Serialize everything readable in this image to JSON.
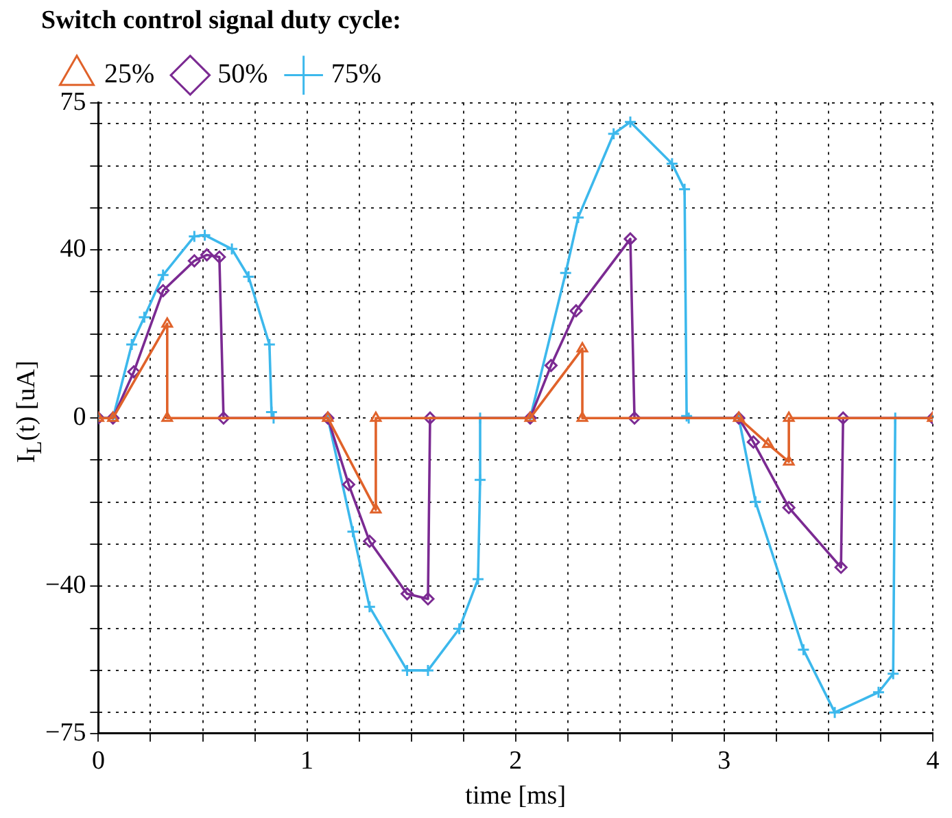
{
  "chart_data": {
    "type": "line",
    "xlabel": "time [ms]",
    "ylabel": "I$_{L}$(t) [uA]",
    "legend_title": "Switch control signal duty cycle:",
    "legend": "top left",
    "grid": true,
    "line_style": "solid",
    "xlim": [
      0,
      4
    ],
    "xticks": [
      0,
      {
        "value": 0.25,
        "label": null
      },
      {
        "value": 0.5,
        "label": null
      },
      {
        "value": 0.75,
        "label": null
      },
      1,
      {
        "value": 1.25,
        "label": null
      },
      {
        "value": 1.5,
        "label": null
      },
      {
        "value": 1.75,
        "label": null
      },
      2,
      {
        "value": 2.25,
        "label": null
      },
      {
        "value": 2.5,
        "label": null
      },
      {
        "value": 2.75,
        "label": null
      },
      3,
      {
        "value": 3.25,
        "label": null
      },
      {
        "value": 3.5,
        "label": null
      },
      {
        "value": 3.75,
        "label": null
      },
      4
    ],
    "ylim": [
      -75,
      75
    ],
    "yticks": [
      {
        "value": -75,
        "label": "−75"
      },
      {
        "value": -70,
        "label": null
      },
      {
        "value": -60,
        "label": null
      },
      {
        "value": -50,
        "label": null
      },
      {
        "value": -40,
        "label": "−40"
      },
      {
        "value": -30,
        "label": null
      },
      {
        "value": -20,
        "label": null
      },
      {
        "value": -10,
        "label": null
      },
      0,
      {
        "value": 10,
        "label": null
      },
      {
        "value": 20,
        "label": null
      },
      {
        "value": 30,
        "label": null
      },
      40,
      {
        "value": 50,
        "label": null
      },
      {
        "value": 60,
        "label": null
      },
      {
        "value": 70,
        "label": null
      },
      75
    ],
    "series": [
      {
        "name": "25%",
        "color": "#e0622a",
        "marker": "triangle",
        "x": [
          0,
          0.07,
          0.33,
          0.33,
          1.1,
          1.33,
          1.33,
          2.07,
          2.32,
          2.32,
          3.07,
          3.21,
          3.31,
          3.31,
          4
        ],
        "values": [
          0,
          0,
          22.4,
          0,
          0,
          -21.8,
          0,
          0,
          16.5,
          0,
          0,
          -6.2,
          -10.4,
          0,
          0
        ]
      },
      {
        "name": "50%",
        "color": "#7b2a92",
        "marker": "diamond",
        "x": [
          0,
          0.07,
          0.17,
          0.31,
          0.46,
          0.52,
          0.58,
          0.6,
          1.1,
          1.2,
          1.3,
          1.48,
          1.58,
          1.59,
          2.07,
          2.17,
          2.29,
          2.55,
          2.57,
          3.07,
          3.14,
          3.31,
          3.56,
          3.57,
          4
        ],
        "values": [
          0,
          0,
          11,
          30.3,
          37.4,
          38.8,
          38.3,
          0,
          0,
          -15.8,
          -29.3,
          -41.8,
          -43,
          0,
          0,
          12.5,
          25.5,
          42.6,
          0,
          0,
          -5.7,
          -21.3,
          -35.5,
          0,
          0
        ]
      },
      {
        "name": "75%",
        "color": "#3cb8ec",
        "marker": "cross",
        "x": [
          0,
          0.07,
          0.16,
          0.22,
          0.31,
          0.46,
          0.51,
          0.64,
          0.72,
          0.82,
          0.83,
          0.84,
          1.1,
          1.22,
          1.3,
          1.48,
          1.58,
          1.73,
          1.82,
          1.83,
          1.83,
          2.07,
          2.24,
          2.3,
          2.47,
          2.55,
          2.75,
          2.81,
          2.82,
          2.83,
          3.07,
          3.15,
          3.38,
          3.53,
          3.74,
          3.81,
          3.82,
          4
        ],
        "values": [
          0,
          0,
          17.5,
          24,
          34,
          43.2,
          43.5,
          40.2,
          33.6,
          17.5,
          1.4,
          0,
          0,
          -27,
          -44.9,
          -60,
          -60,
          -50.1,
          -38.3,
          -14.7,
          0,
          0,
          34.5,
          47.7,
          67.6,
          70.4,
          60.5,
          54.4,
          0.5,
          0,
          0,
          -19.9,
          -55.1,
          -70,
          -65.2,
          -60.8,
          0,
          0
        ]
      }
    ]
  }
}
